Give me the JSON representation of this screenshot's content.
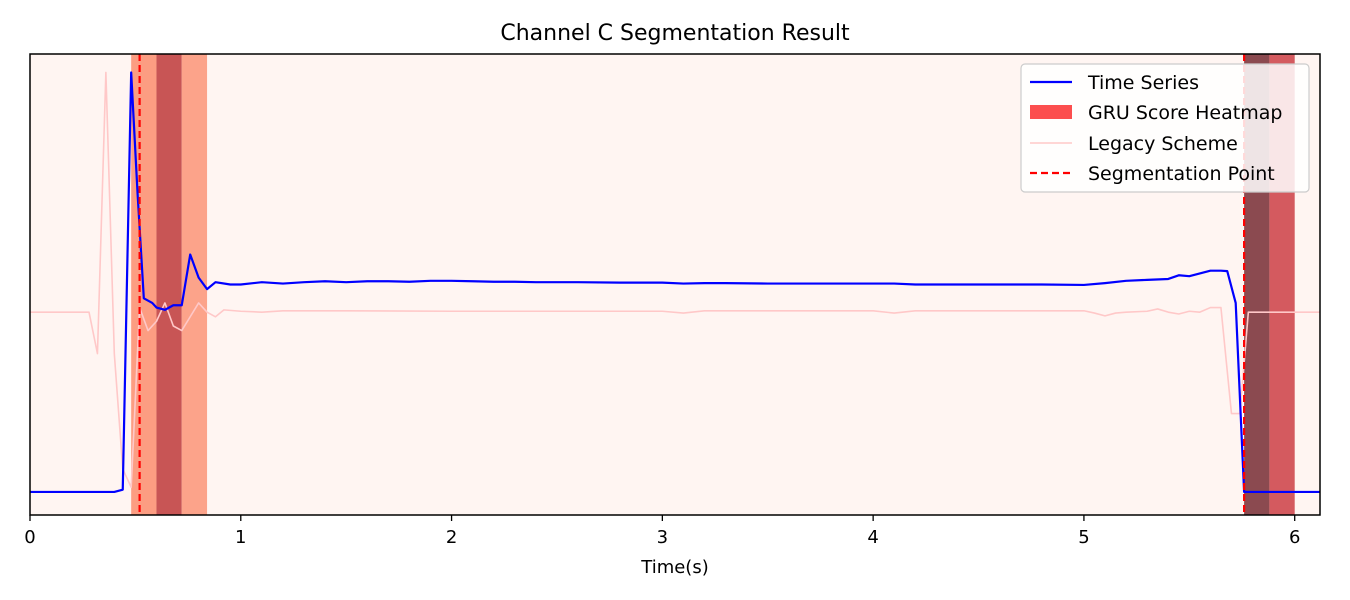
{
  "chart_data": {
    "type": "line",
    "title": "Channel C Segmentation Result",
    "xlabel": "Time(s)",
    "ylabel": "",
    "xlim": [
      0,
      6.12
    ],
    "ylim": [
      0,
      1
    ],
    "xticks": [
      0,
      1,
      2,
      3,
      4,
      5,
      6
    ],
    "grid": false,
    "legend_position": "top-right",
    "background_color": "#fff5f2",
    "heatmap": {
      "name": "GRU Score Heatmap",
      "legend_color": "#fc4e4e",
      "bands": [
        {
          "x0": 0.48,
          "x1": 0.6,
          "color": "#fc9d82"
        },
        {
          "x0": 0.6,
          "x1": 0.72,
          "color": "#c85555"
        },
        {
          "x0": 0.72,
          "x1": 0.84,
          "color": "#fca38a"
        },
        {
          "x0": 5.76,
          "x1": 5.88,
          "color": "#8b4a50"
        },
        {
          "x0": 5.88,
          "x1": 6.0,
          "color": "#d45a5f"
        }
      ]
    },
    "segmentation_points": {
      "name": "Segmentation Point",
      "color": "#ff0000",
      "x": [
        0.52,
        5.76
      ]
    },
    "series": [
      {
        "name": "Time Series",
        "color": "#0000ff",
        "x": [
          0,
          0.4,
          0.44,
          0.48,
          0.51,
          0.54,
          0.58,
          0.6,
          0.64,
          0.68,
          0.72,
          0.76,
          0.8,
          0.84,
          0.88,
          0.95,
          1.0,
          1.1,
          1.2,
          1.3,
          1.4,
          1.5,
          1.6,
          1.7,
          1.8,
          1.9,
          2.0,
          2.1,
          2.2,
          2.3,
          2.4,
          2.6,
          2.8,
          3.0,
          3.1,
          3.2,
          3.3,
          3.5,
          3.7,
          3.9,
          4.1,
          4.2,
          4.4,
          4.6,
          4.8,
          5.0,
          5.1,
          5.2,
          5.3,
          5.4,
          5.45,
          5.5,
          5.6,
          5.65,
          5.68,
          5.72,
          5.76,
          5.78,
          5.85,
          6.12
        ],
        "y": [
          0.05,
          0.05,
          0.055,
          0.96,
          0.7,
          0.47,
          0.46,
          0.45,
          0.445,
          0.455,
          0.455,
          0.565,
          0.515,
          0.49,
          0.505,
          0.5,
          0.5,
          0.505,
          0.502,
          0.505,
          0.507,
          0.505,
          0.507,
          0.507,
          0.506,
          0.508,
          0.508,
          0.507,
          0.506,
          0.506,
          0.505,
          0.505,
          0.504,
          0.504,
          0.502,
          0.503,
          0.503,
          0.502,
          0.502,
          0.502,
          0.502,
          0.5,
          0.5,
          0.5,
          0.5,
          0.499,
          0.503,
          0.508,
          0.51,
          0.512,
          0.52,
          0.518,
          0.53,
          0.53,
          0.529,
          0.46,
          0.05,
          0.05,
          0.05,
          0.05
        ]
      },
      {
        "name": "Legacy Scheme",
        "color": "#ffc8c8",
        "x": [
          0,
          0.28,
          0.32,
          0.36,
          0.4,
          0.44,
          0.48,
          0.52,
          0.56,
          0.6,
          0.64,
          0.68,
          0.72,
          0.76,
          0.8,
          0.84,
          0.88,
          0.92,
          1.0,
          1.1,
          1.2,
          1.5,
          2.0,
          2.5,
          3.0,
          3.1,
          3.2,
          3.5,
          4.0,
          4.1,
          4.2,
          4.5,
          5.0,
          5.05,
          5.1,
          5.15,
          5.2,
          5.3,
          5.35,
          5.4,
          5.45,
          5.5,
          5.55,
          5.6,
          5.65,
          5.7,
          5.74,
          5.78,
          5.82,
          5.9,
          6.0,
          6.12
        ],
        "y": [
          0.44,
          0.44,
          0.35,
          0.96,
          0.35,
          0.1,
          0.06,
          0.45,
          0.4,
          0.42,
          0.46,
          0.41,
          0.4,
          0.43,
          0.46,
          0.44,
          0.43,
          0.445,
          0.442,
          0.44,
          0.443,
          0.443,
          0.442,
          0.442,
          0.442,
          0.438,
          0.443,
          0.443,
          0.443,
          0.438,
          0.443,
          0.443,
          0.443,
          0.438,
          0.432,
          0.438,
          0.44,
          0.442,
          0.447,
          0.44,
          0.436,
          0.442,
          0.44,
          0.45,
          0.45,
          0.22,
          0.22,
          0.44,
          0.44,
          0.44,
          0.44,
          0.44
        ]
      }
    ]
  }
}
